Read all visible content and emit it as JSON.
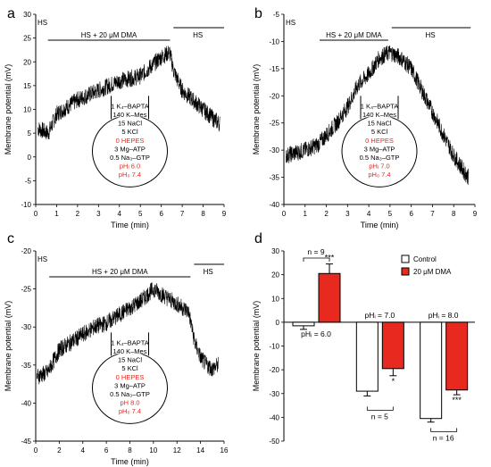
{
  "chart_data": [
    {
      "type": "line",
      "panel_label": "a",
      "xlabel": "Time (min)",
      "ylabel": "Membrane potential (mV)",
      "xlim": [
        0,
        9
      ],
      "ylim": [
        -10,
        30
      ],
      "xticks": [
        "0",
        "1",
        "2",
        "3",
        "4",
        "5",
        "6",
        "7",
        "8",
        "9"
      ],
      "yticks": [
        "-10",
        "-5",
        "0",
        "5",
        "10",
        "15",
        "20",
        "25",
        "30"
      ],
      "segments": [
        {
          "label": "HS",
          "x0": 0,
          "x1": 0.5
        },
        {
          "label": "HS + 20 μM DMA",
          "x0": 0.5,
          "x1": 6.5
        },
        {
          "label": "HS",
          "x0": 6.5,
          "x1": 9
        }
      ],
      "trace_x": [
        0.1,
        0.6,
        1.0,
        2.0,
        3.0,
        4.0,
        5.0,
        6.0,
        6.4,
        6.6,
        7.0,
        7.5,
        8.0,
        8.5,
        8.8
      ],
      "trace_y": [
        6,
        5,
        9,
        12,
        14,
        16,
        17,
        21,
        22,
        18,
        14,
        12,
        10,
        8,
        7
      ],
      "solution": [
        "1 K₄–BAPTA",
        "140 K–Mes",
        "15 NaCl",
        "5 KCl",
        "0 HEPES",
        "3 Mg–ATP",
        "0.5 Na₃–GTP",
        "pHᵢ 6.0",
        "pH₀ 7.4"
      ],
      "solution_red": [
        false,
        false,
        false,
        false,
        true,
        false,
        false,
        true,
        true
      ]
    },
    {
      "type": "line",
      "panel_label": "b",
      "xlabel": "Time (min)",
      "ylabel": "Membrane potential (mV)",
      "xlim": [
        0,
        9
      ],
      "ylim": [
        -40,
        -5
      ],
      "xticks": [
        "0",
        "1",
        "2",
        "3",
        "4",
        "5",
        "6",
        "7",
        "8",
        "9"
      ],
      "yticks": [
        "-40",
        "-35",
        "-30",
        "-25",
        "-20",
        "-15",
        "-10",
        "-5"
      ],
      "segments": [
        {
          "label": "HS",
          "x0": 0,
          "x1": 1.6
        },
        {
          "label": "HS + 20 μM DMA",
          "x0": 1.6,
          "x1": 5.0
        },
        {
          "label": "HS",
          "x0": 5.0,
          "x1": 8.8
        }
      ],
      "trace_x": [
        0.1,
        1.0,
        1.6,
        2.5,
        3.0,
        3.5,
        4.0,
        4.5,
        5.0,
        5.5,
        6.0,
        6.5,
        7.0,
        7.5,
        8.0,
        8.5,
        8.7
      ],
      "trace_y": [
        -31,
        -30,
        -29,
        -25,
        -22,
        -18,
        -16,
        -13,
        -12,
        -13,
        -15,
        -19,
        -23,
        -27,
        -31,
        -34,
        -35
      ],
      "solution": [
        "1 K₄–BAPTA",
        "140 K–Mes",
        "15 NaCl",
        "5 KCl",
        "0 HEPES",
        "3 Mg–ATP",
        "0.5 Na₃–GTP",
        "pHᵢ 7.0",
        "pH₀ 7.4"
      ],
      "solution_red": [
        false,
        false,
        false,
        false,
        true,
        false,
        false,
        true,
        true
      ]
    },
    {
      "type": "line",
      "panel_label": "c",
      "xlabel": "Time (min)",
      "ylabel": "Membrane potential (mV)",
      "xlim": [
        0,
        16
      ],
      "ylim": [
        -45,
        -20
      ],
      "xticks": [
        "0",
        "2",
        "4",
        "6",
        "8",
        "10",
        "12",
        "14",
        "16"
      ],
      "yticks": [
        "-45",
        "-40",
        "-35",
        "-30",
        "-25",
        "-20"
      ],
      "segments": [
        {
          "label": "HS",
          "x0": 0,
          "x1": 1.0
        },
        {
          "label": "HS + 20 μM DMA",
          "x0": 1.0,
          "x1": 13.3
        },
        {
          "label": "HS",
          "x0": 13.3,
          "x1": 16
        }
      ],
      "trace_x": [
        0.1,
        1.0,
        2.0,
        3.0,
        4.0,
        5.0,
        6.0,
        7.0,
        8.0,
        9.0,
        10.0,
        11.0,
        12.0,
        13.0,
        13.5,
        14.0,
        14.5,
        15.0,
        15.5
      ],
      "trace_y": [
        -36.5,
        -36,
        -33,
        -32,
        -31,
        -30,
        -29.5,
        -28.5,
        -27.5,
        -26.5,
        -25,
        -26,
        -27,
        -28,
        -32,
        -34,
        -35,
        -35.5,
        -35
      ],
      "solution": [
        "1 K₄–BAPTA",
        "140 K–Mes",
        "15 NaCl",
        "5 KCl",
        "0 HEPES",
        "3 Mg–ATP",
        "0.5 Na₃–GTP",
        "pH 8.0",
        "pH₀ 7.4"
      ],
      "solution_red": [
        false,
        false,
        false,
        false,
        true,
        false,
        false,
        true,
        true
      ]
    },
    {
      "type": "bar",
      "panel_label": "d",
      "ylabel": "Membrane potential (mV)",
      "ylim": [
        -50,
        30
      ],
      "yticks": [
        "-50",
        "-40",
        "-30",
        "-20",
        "-10",
        "0",
        "10",
        "20",
        "30"
      ],
      "categories": [
        "pHᵢ = 6.0",
        "pHᵢ = 7.0",
        "pHᵢ = 8.0"
      ],
      "series": [
        {
          "name": "Control",
          "color": "#ffffff",
          "values": [
            -1.5,
            -29,
            -40.5
          ],
          "errors": [
            1.5,
            2,
            1.5
          ]
        },
        {
          "name": "20 μM DMA",
          "color": "#e8291f",
          "values": [
            20.5,
            -19.5,
            -28.5
          ],
          "errors": [
            4,
            3,
            2
          ]
        }
      ],
      "significance": [
        "***",
        "*",
        "***"
      ],
      "n_labels": [
        "n = 9",
        "n = 5",
        "n = 16"
      ],
      "legend_position": "top-right"
    }
  ]
}
